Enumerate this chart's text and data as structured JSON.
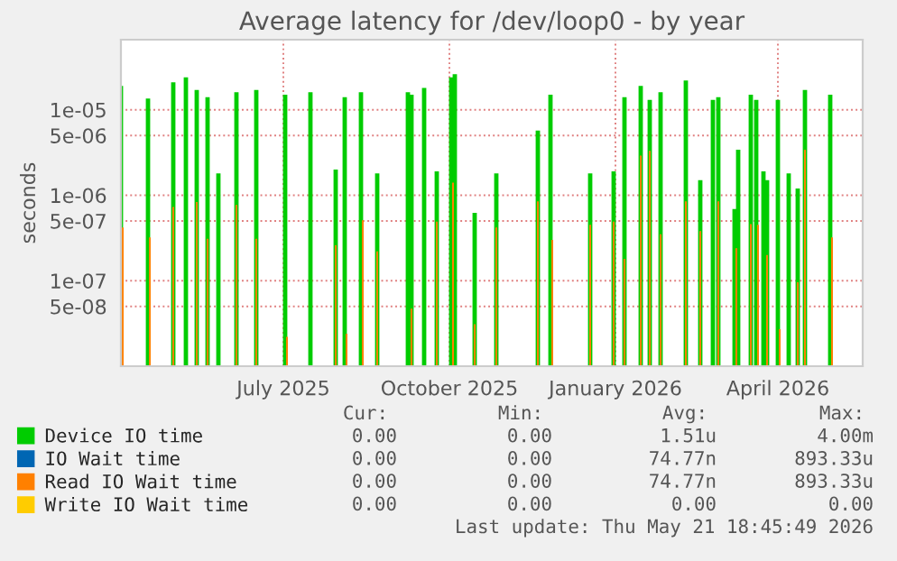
{
  "chart_data": {
    "type": "bar",
    "title": "Average latency for /dev/loop0 - by year",
    "ylabel": "seconds",
    "log": "y",
    "grid": true,
    "legend": "bottom",
    "xlim": [
      "2025-04-02",
      "2026-05-18"
    ],
    "xticks": [
      {
        "value": "2025-07-01",
        "label": "July 2025"
      },
      {
        "value": "2025-10-01",
        "label": "October 2025"
      },
      {
        "value": "2026-01-01",
        "label": "January 2026"
      },
      {
        "value": "2026-04-01",
        "label": "April 2026"
      }
    ],
    "ylim": [
      1e-08,
      6.6e-05
    ],
    "yticks": [
      {
        "value": 5e-08,
        "label": "5e-08"
      },
      {
        "value": 1e-07,
        "label": "1e-07"
      },
      {
        "value": 5e-07,
        "label": "5e-07"
      },
      {
        "value": 1e-06,
        "label": "1e-06"
      },
      {
        "value": 5e-06,
        "label": "5e-06"
      },
      {
        "value": 1e-05,
        "label": "1e-05"
      }
    ],
    "series": [
      {
        "name": "Device IO time",
        "color": "#00cc00",
        "x": [
          "2025-04-02",
          "2025-04-17",
          "2025-05-01",
          "2025-05-08",
          "2025-05-14",
          "2025-05-20",
          "2025-05-26",
          "2025-06-05",
          "2025-06-16",
          "2025-07-02",
          "2025-07-16",
          "2025-07-30",
          "2025-08-04",
          "2025-08-13",
          "2025-08-22",
          "2025-09-08",
          "2025-09-10",
          "2025-09-17",
          "2025-09-24",
          "2025-10-02",
          "2025-10-04",
          "2025-10-15",
          "2025-10-27",
          "2025-11-19",
          "2025-11-26",
          "2025-12-18",
          "2025-12-31",
          "2026-01-06",
          "2026-01-15",
          "2026-01-20",
          "2026-01-26",
          "2026-02-09",
          "2026-02-17",
          "2026-02-24",
          "2026-02-27",
          "2026-03-08",
          "2026-03-10",
          "2026-03-17",
          "2026-03-20",
          "2026-03-24",
          "2026-03-26",
          "2026-04-01",
          "2026-04-07",
          "2026-04-12",
          "2026-04-16",
          "2026-04-30"
        ],
        "values": [
          1.9e-05,
          1.35e-05,
          2.1e-05,
          2.4e-05,
          1.7e-05,
          1.4e-05,
          1.8e-06,
          1.6e-05,
          1.7e-05,
          1.5e-05,
          1.6e-05,
          2e-06,
          1.4e-05,
          1.6e-05,
          1.8e-06,
          1.6e-05,
          1.5e-05,
          1.8e-05,
          1.9e-06,
          2.4e-05,
          2.6e-05,
          6.2e-07,
          1.8e-06,
          5.7e-06,
          1.5e-05,
          1.8e-06,
          1.9e-06,
          1.4e-05,
          1.9e-05,
          1.3e-05,
          1.6e-05,
          2.2e-05,
          1.5e-06,
          1.3e-05,
          1.4e-05,
          6.9e-07,
          3.4e-06,
          1.5e-05,
          1.3e-05,
          1.9e-06,
          1.5e-06,
          1.3e-05,
          1.8e-06,
          1.2e-06,
          1.7e-05,
          1.5e-05
        ]
      },
      {
        "name": "IO Wait time",
        "color": "#0066b3"
      },
      {
        "name": "Read IO Wait time",
        "color": "#ff8000",
        "x": [
          "2025-04-03",
          "2025-04-18",
          "2025-05-01",
          "2025-05-14",
          "2025-05-20",
          "2025-06-05",
          "2025-06-16",
          "2025-07-03",
          "2025-07-30",
          "2025-08-05",
          "2025-08-14",
          "2025-08-22",
          "2025-09-10",
          "2025-09-24",
          "2025-10-03",
          "2025-10-15",
          "2025-10-27",
          "2025-11-19",
          "2025-11-27",
          "2025-12-18",
          "2025-12-31",
          "2026-01-06",
          "2026-01-15",
          "2026-01-20",
          "2026-01-26",
          "2026-02-09",
          "2026-02-17",
          "2026-02-27",
          "2026-03-09",
          "2026-03-17",
          "2026-03-21",
          "2026-03-26",
          "2026-04-02",
          "2026-04-12",
          "2026-04-16",
          "2026-05-01"
        ],
        "values": [
          4.2e-07,
          3.2e-07,
          7.3e-07,
          8.3e-07,
          3.1e-07,
          7.7e-07,
          3.1e-07,
          2.2e-08,
          2.6e-07,
          2.4e-08,
          5.1e-07,
          2.2e-07,
          4.7e-08,
          4.9e-07,
          1.4e-06,
          3.1e-08,
          4.2e-07,
          8.5e-07,
          3e-07,
          4.5e-07,
          4.9e-07,
          1.8e-07,
          2.9e-06,
          3.3e-06,
          3.5e-07,
          8.5e-07,
          3.8e-07,
          8.5e-07,
          2.4e-07,
          4.6e-07,
          4.5e-07,
          2e-07,
          2.7e-08,
          9.6e-08,
          3.4e-06,
          3.2e-07
        ]
      },
      {
        "name": "Write IO Wait time",
        "color": "#ffcc00"
      }
    ],
    "annotations": [
      "Cur:",
      "Min:",
      "Avg:",
      "Max:",
      "0.00",
      "0.00",
      "1.51u",
      "4.00m",
      "0.00",
      "0.00",
      "74.77n",
      "893.33u",
      "0.00",
      "0.00",
      "74.77n",
      "893.33u",
      "0.00",
      "0.00",
      "0.00",
      "0.00",
      "Last update: Thu May 21 18:45:49 2026"
    ]
  }
}
